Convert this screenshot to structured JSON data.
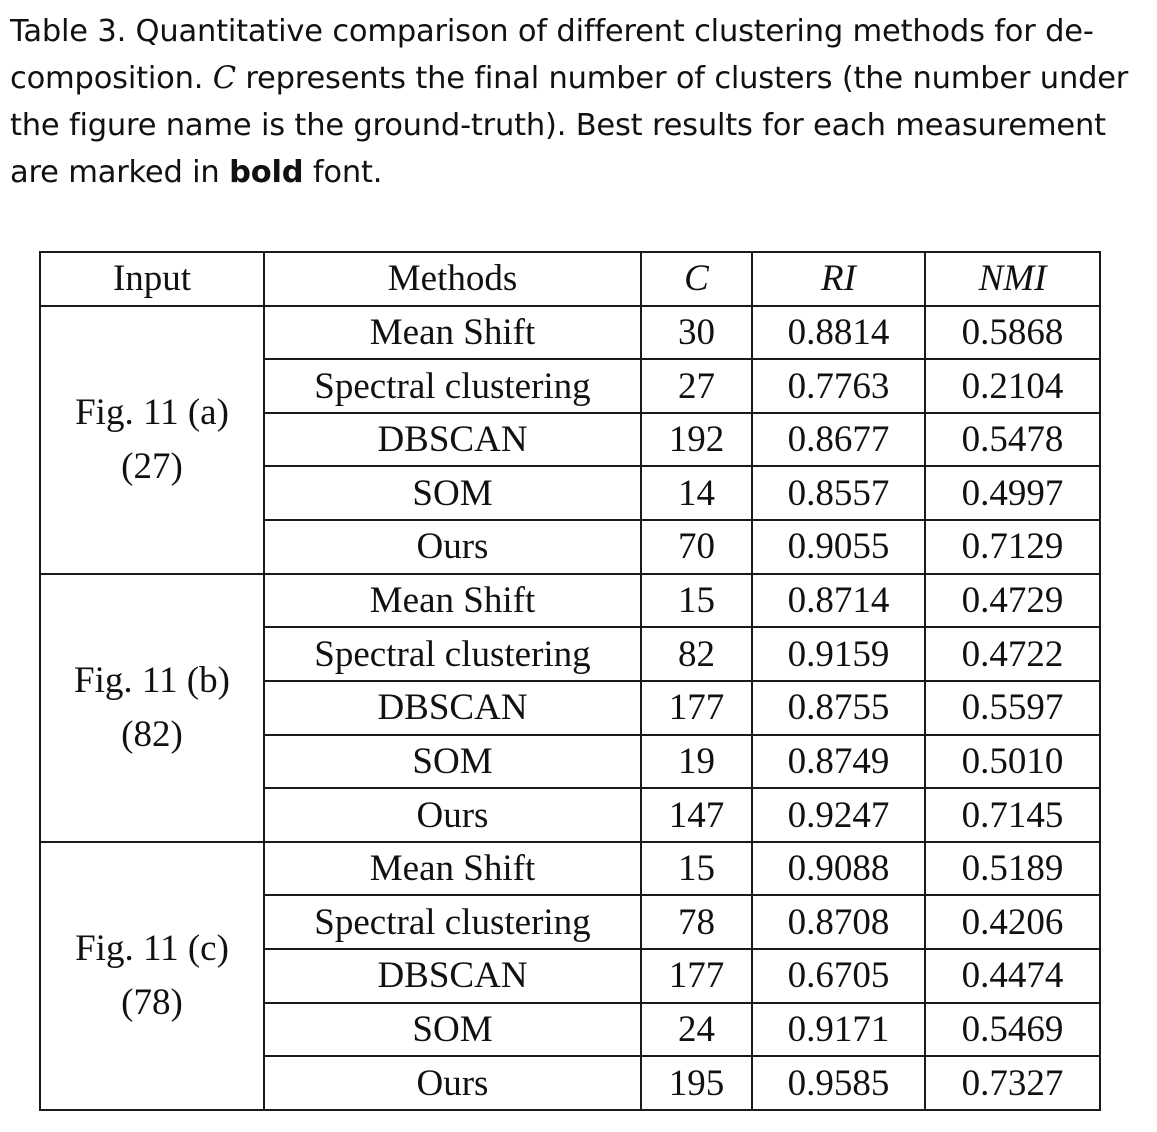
{
  "caption": {
    "prefix": "Table 3.  Quantitative comparison of different clustering methods for de-composition. ",
    "symbol": "C",
    "middle": " represents the final number of clusters (the number under the figure name is the ground-truth). Best results for each measurement are marked in ",
    "bold_word": "bold",
    "suffix": " font."
  },
  "table": {
    "headers": {
      "input": "Input",
      "methods": "Methods",
      "c": "C",
      "ri": "RI",
      "nmi": "NMI"
    },
    "groups": [
      {
        "fig": "Fig. 11 (a)",
        "gt": "(27)",
        "rows": [
          {
            "method": "Mean Shift",
            "c": "30",
            "ri": "0.8814",
            "nmi": "0.5868"
          },
          {
            "method": "Spectral clustering",
            "c": "27",
            "ri": "0.7763",
            "nmi": "0.2104"
          },
          {
            "method": "DBSCAN",
            "c": "192",
            "ri": "0.8677",
            "nmi": "0.5478"
          },
          {
            "method": "SOM",
            "c": "14",
            "ri": "0.8557",
            "nmi": "0.4997"
          },
          {
            "method": "Ours",
            "c": "70",
            "ri": "0.9055",
            "nmi": "0.7129"
          }
        ]
      },
      {
        "fig": "Fig. 11 (b)",
        "gt": "(82)",
        "rows": [
          {
            "method": "Mean Shift",
            "c": "15",
            "ri": "0.8714",
            "nmi": "0.4729"
          },
          {
            "method": "Spectral clustering",
            "c": "82",
            "ri": "0.9159",
            "nmi": "0.4722"
          },
          {
            "method": "DBSCAN",
            "c": "177",
            "ri": "0.8755",
            "nmi": "0.5597"
          },
          {
            "method": "SOM",
            "c": "19",
            "ri": "0.8749",
            "nmi": "0.5010"
          },
          {
            "method": "Ours",
            "c": "147",
            "ri": "0.9247",
            "nmi": "0.7145"
          }
        ]
      },
      {
        "fig": "Fig. 11 (c)",
        "gt": "(78)",
        "rows": [
          {
            "method": "Mean Shift",
            "c": "15",
            "ri": "0.9088",
            "nmi": "0.5189"
          },
          {
            "method": "Spectral clustering",
            "c": "78",
            "ri": "0.8708",
            "nmi": "0.4206"
          },
          {
            "method": "DBSCAN",
            "c": "177",
            "ri": "0.6705",
            "nmi": "0.4474"
          },
          {
            "method": "SOM",
            "c": "24",
            "ri": "0.9171",
            "nmi": "0.5469"
          },
          {
            "method": "Ours",
            "c": "195",
            "ri": "0.9585",
            "nmi": "0.7327"
          }
        ]
      }
    ]
  }
}
